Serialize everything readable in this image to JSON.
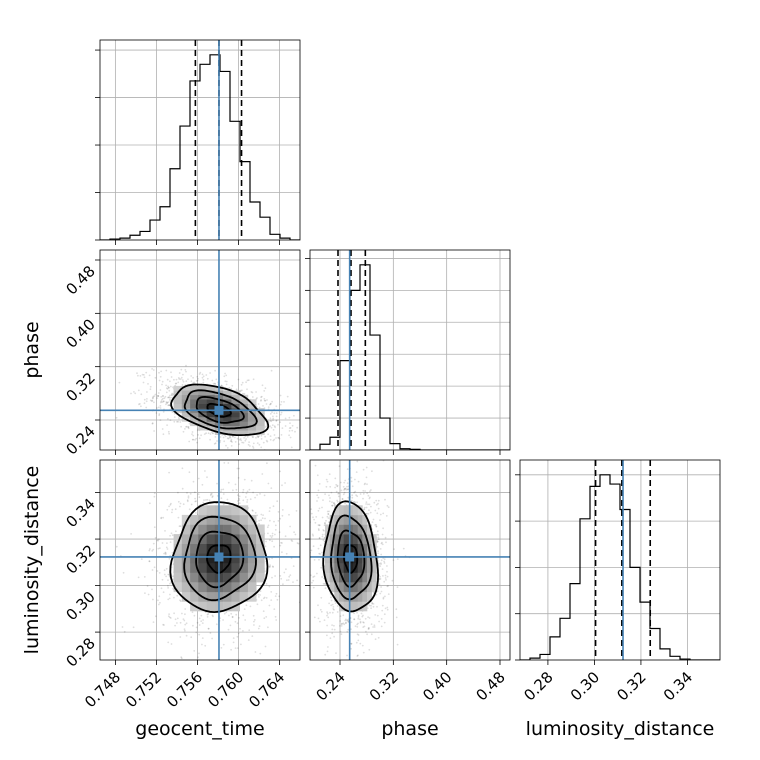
{
  "chart_data": {
    "type": "corner",
    "parameters": [
      {
        "name": "geocent_time",
        "range": [
          0.7465,
          0.766
        ],
        "ticks": [
          0.748,
          0.752,
          0.756,
          0.76,
          0.764
        ],
        "tick_labels": [
          "0.748",
          "0.752",
          "0.756",
          "0.760",
          "0.764"
        ]
      },
      {
        "name": "phase",
        "range": [
          0.195,
          0.495
        ],
        "ticks": [
          0.24,
          0.32,
          0.4,
          0.48
        ],
        "tick_labels": [
          "0.24",
          "0.32",
          "0.40",
          "0.48"
        ]
      },
      {
        "name": "luminosity_distance",
        "range": [
          0.268,
          0.354
        ],
        "ticks": [
          0.28,
          0.3,
          0.32,
          0.34
        ],
        "tick_labels": [
          "0.28",
          "0.30",
          "0.32",
          "0.34"
        ]
      }
    ],
    "truths": [
      0.7581,
      0.2545,
      0.3123
    ],
    "quantiles": [
      [
        0.7558,
        0.7581,
        0.7603
      ],
      [
        0.237,
        0.2565,
        0.278
      ],
      [
        0.3005,
        0.3118,
        0.324
      ]
    ],
    "histograms": [
      {
        "edges_start": 0.7465,
        "bin_width": 0.000975,
        "counts": [
          0,
          2,
          4,
          10,
          18,
          42,
          70,
          150,
          240,
          335,
          370,
          390,
          355,
          250,
          165,
          80,
          48,
          12,
          4,
          0
        ]
      },
      {
        "edges_start": 0.195,
        "bin_width": 0.015,
        "counts": [
          0,
          18,
          40,
          280,
          500,
          580,
          360,
          100,
          20,
          4,
          2,
          0,
          0,
          0,
          0,
          0,
          0,
          0,
          0,
          0
        ]
      },
      {
        "edges_start": 0.268,
        "bin_width": 0.0043,
        "counts": [
          0,
          4,
          12,
          50,
          90,
          165,
          305,
          375,
          400,
          380,
          325,
          200,
          125,
          68,
          24,
          8,
          2,
          0,
          0,
          0
        ]
      }
    ],
    "pair_contours": [
      {
        "x": 0,
        "y": 1,
        "center": [
          0.7581,
          0.2545
        ],
        "sigma": [
          0.0023,
          0.019
        ],
        "rho": -0.45
      },
      {
        "x": 0,
        "y": 2,
        "center": [
          0.7581,
          0.3118
        ],
        "sigma": [
          0.0023,
          0.0118
        ],
        "rho": 0.05
      },
      {
        "x": 1,
        "y": 2,
        "center": [
          0.256,
          0.3118
        ],
        "sigma": [
          0.02,
          0.0118
        ],
        "rho": -0.1
      }
    ],
    "contour_levels_sigma": [
      0.5,
      1.0,
      1.5,
      2.0
    ],
    "grid": true,
    "truth_color": "#4682b4",
    "title": "",
    "legend": "none"
  }
}
